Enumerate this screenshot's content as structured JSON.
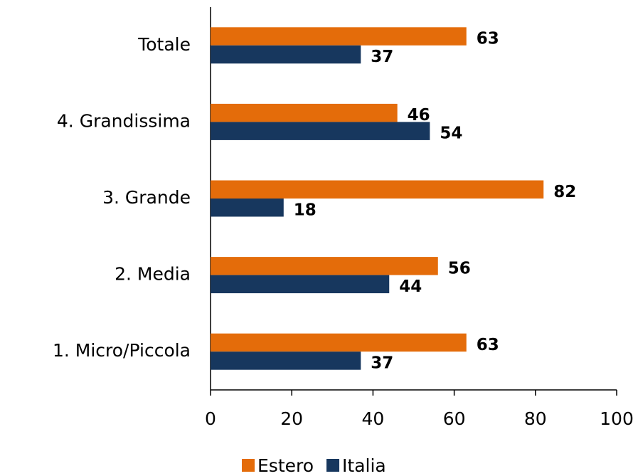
{
  "chart_data": {
    "type": "bar",
    "orientation": "horizontal",
    "categories": [
      "Totale",
      "4. Grandissima",
      "3. Grande",
      "2. Media",
      "1. Micro/Piccola"
    ],
    "series": [
      {
        "name": "Estero",
        "color": "#e46c0a",
        "values": [
          63,
          46,
          82,
          56,
          63
        ]
      },
      {
        "name": "Italia",
        "color": "#17375e",
        "values": [
          37,
          54,
          18,
          44,
          37
        ]
      }
    ],
    "xlim": [
      0,
      100
    ],
    "xticks": [
      0,
      20,
      40,
      60,
      80,
      100
    ],
    "grid": false,
    "legend": "bottom"
  }
}
